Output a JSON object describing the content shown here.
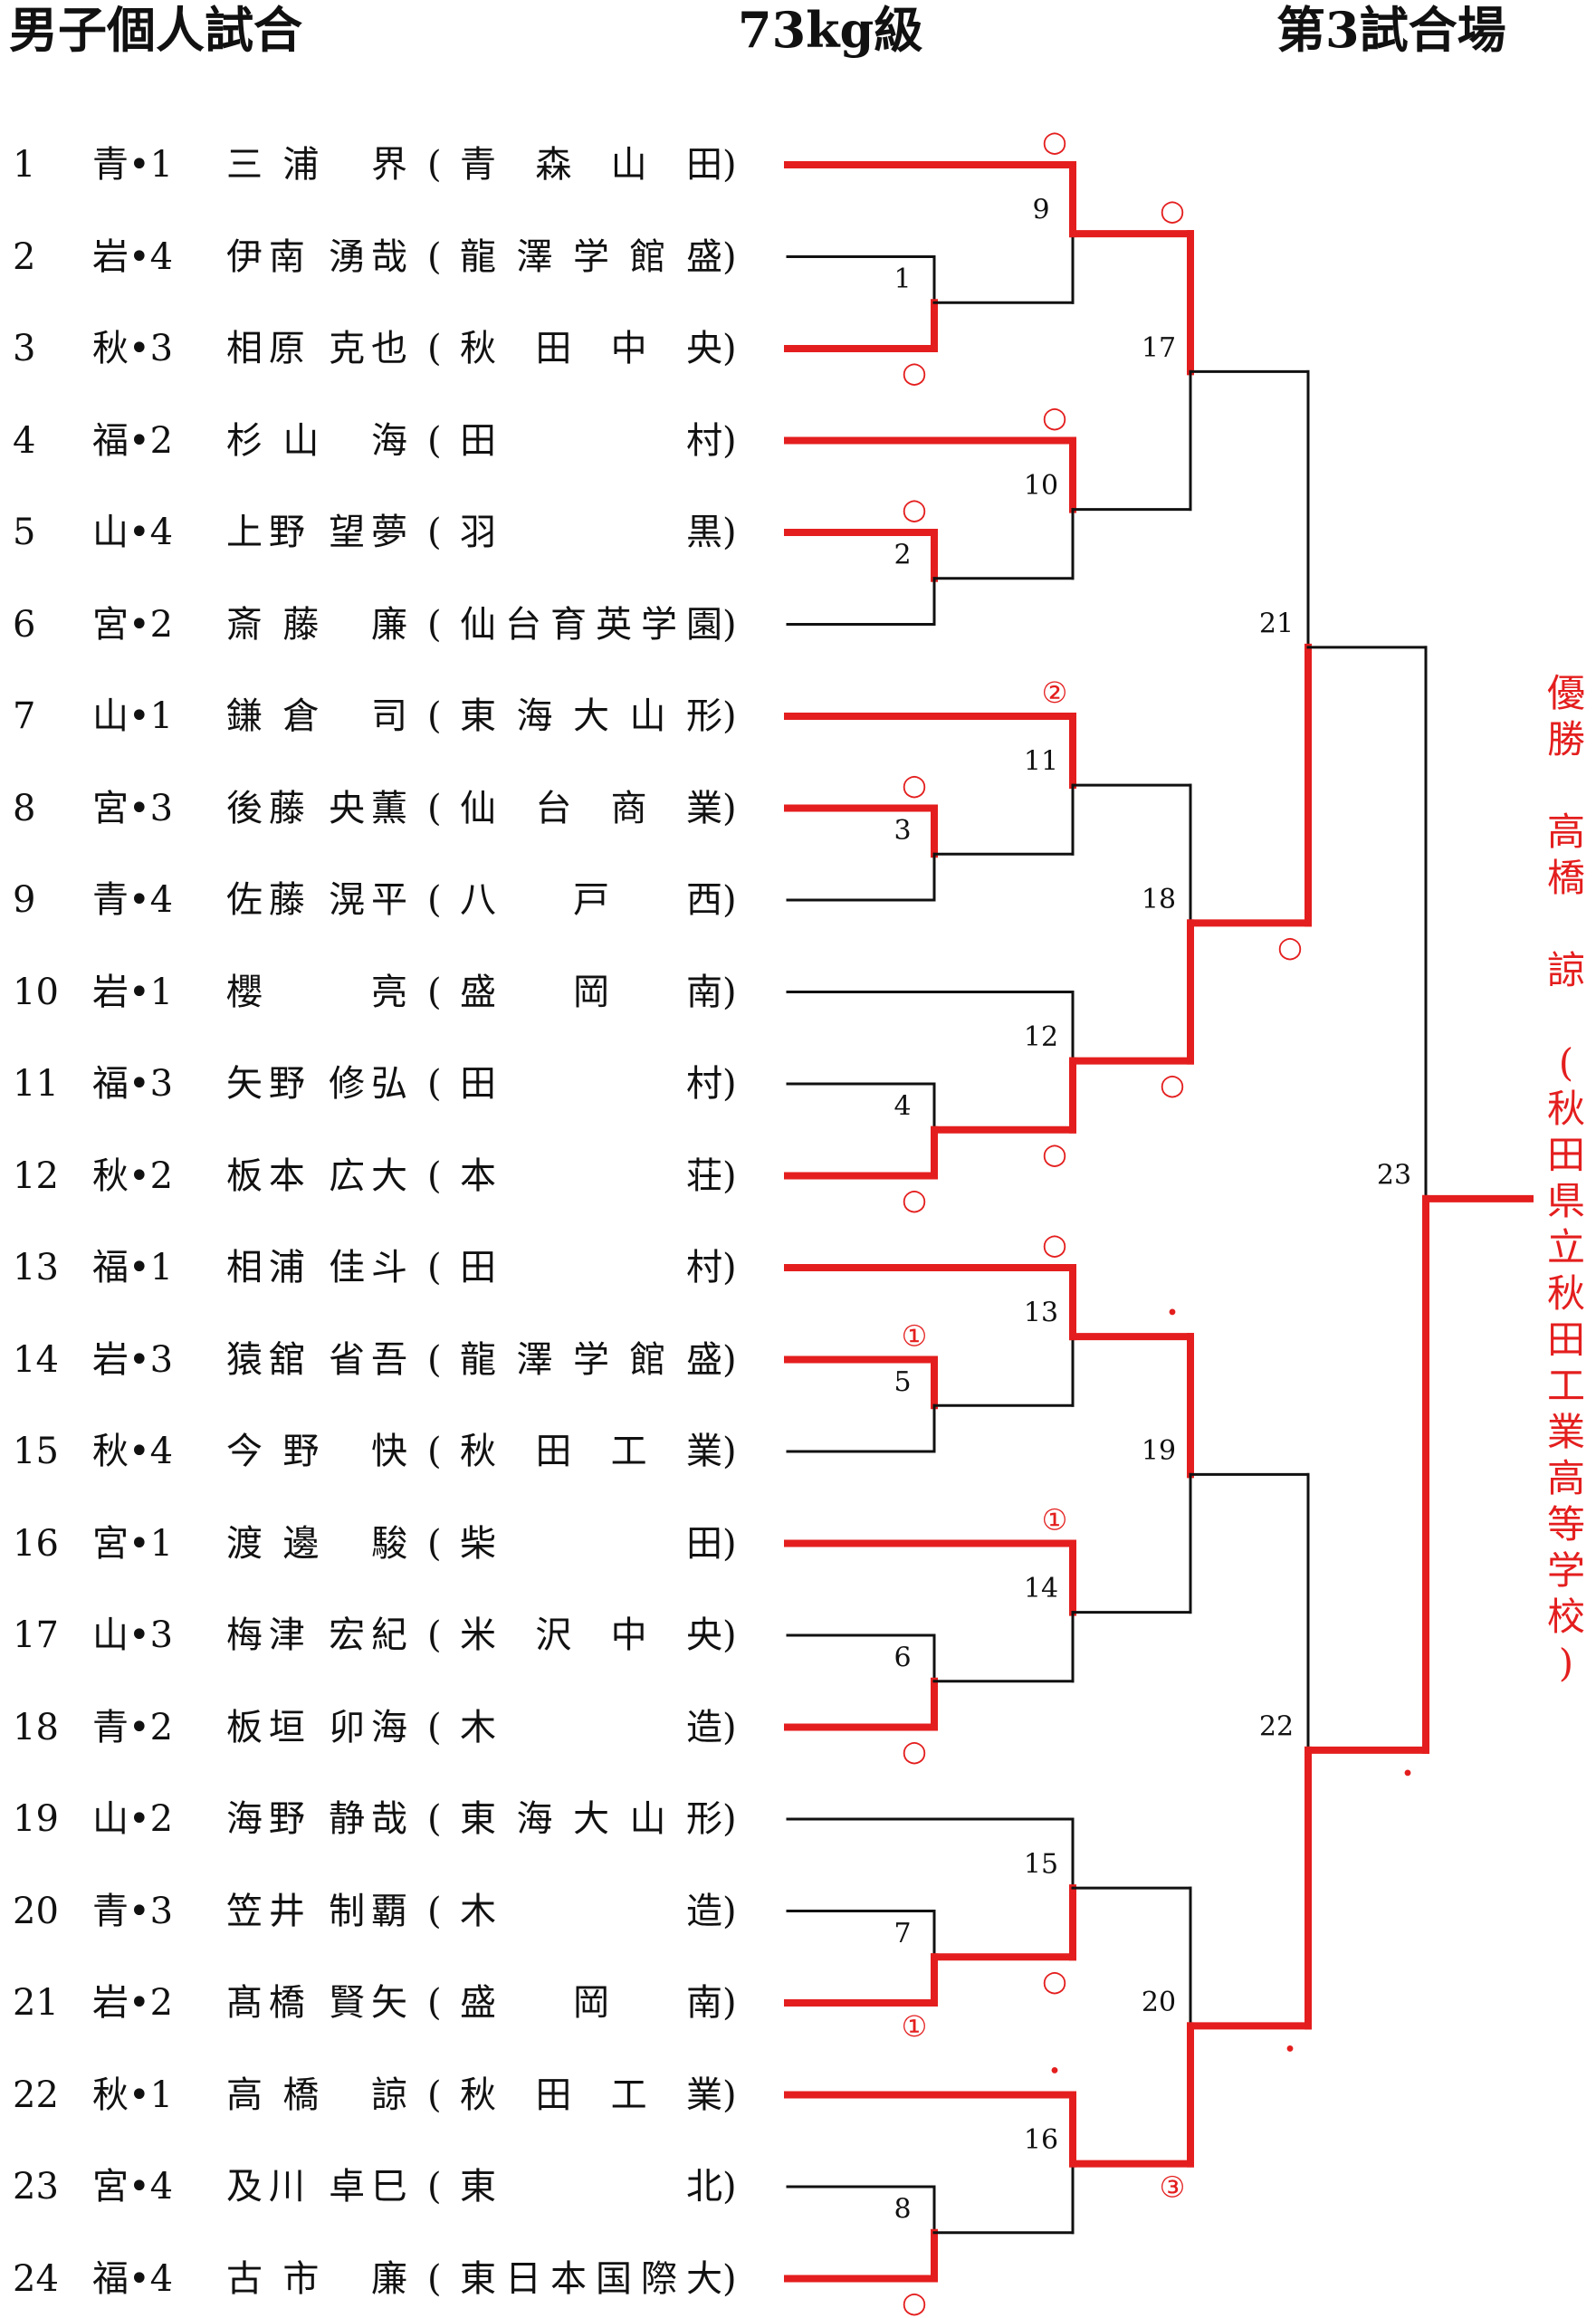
{
  "header": {
    "title": "男子個人試合",
    "weight_class": "73kg級",
    "venue": "第3試合場"
  },
  "players": [
    {
      "no": "1",
      "pref": "青•1",
      "name": "三浦 界",
      "school": "青森山田"
    },
    {
      "no": "2",
      "pref": "岩•4",
      "name": "伊南 湧哉",
      "school": "龍澤学館盛"
    },
    {
      "no": "3",
      "pref": "秋•3",
      "name": "相原 克也",
      "school": "秋田中央"
    },
    {
      "no": "4",
      "pref": "福•2",
      "name": "杉山 海",
      "school": "田村"
    },
    {
      "no": "5",
      "pref": "山•4",
      "name": "上野 望夢",
      "school": "羽黒"
    },
    {
      "no": "6",
      "pref": "宮•2",
      "name": "斎藤 廉",
      "school": "仙台育英学園"
    },
    {
      "no": "7",
      "pref": "山•1",
      "name": "鎌倉 司",
      "school": "東海大山形"
    },
    {
      "no": "8",
      "pref": "宮•3",
      "name": "後藤 央薫",
      "school": "仙台商業"
    },
    {
      "no": "9",
      "pref": "青•4",
      "name": "佐藤 滉平",
      "school": "八戸西"
    },
    {
      "no": "10",
      "pref": "岩•1",
      "name": "櫻 亮",
      "school": "盛岡南"
    },
    {
      "no": "11",
      "pref": "福•3",
      "name": "矢野 修弘",
      "school": "田村"
    },
    {
      "no": "12",
      "pref": "秋•2",
      "name": "板本 広大",
      "school": "本荘"
    },
    {
      "no": "13",
      "pref": "福•1",
      "name": "相浦 佳斗",
      "school": "田村"
    },
    {
      "no": "14",
      "pref": "岩•3",
      "name": "猿舘 省吾",
      "school": "龍澤学館盛"
    },
    {
      "no": "15",
      "pref": "秋•4",
      "name": "今野 快",
      "school": "秋田工業"
    },
    {
      "no": "16",
      "pref": "宮•1",
      "name": "渡邊 駿",
      "school": "柴田"
    },
    {
      "no": "17",
      "pref": "山•3",
      "name": "梅津 宏紀",
      "school": "米沢中央"
    },
    {
      "no": "18",
      "pref": "青•2",
      "name": "板垣 卯海",
      "school": "木造"
    },
    {
      "no": "19",
      "pref": "山•2",
      "name": "海野 静哉",
      "school": "東海大山形"
    },
    {
      "no": "20",
      "pref": "青•3",
      "name": "笠井 制覇",
      "school": "木造"
    },
    {
      "no": "21",
      "pref": "岩•2",
      "name": "髙橋 賢矢",
      "school": "盛岡南"
    },
    {
      "no": "22",
      "pref": "秋•1",
      "name": "高橋 諒",
      "school": "秋田工業"
    },
    {
      "no": "23",
      "pref": "宮•4",
      "name": "及川 卓巳",
      "school": "東北"
    },
    {
      "no": "24",
      "pref": "福•4",
      "name": "古市 廉",
      "school": "東日本国際大"
    }
  ],
  "bracket": {
    "colors": {
      "winner": "#e41e1e",
      "line": "#111111"
    },
    "matches": [
      {
        "no": "1",
        "players": [
          2,
          3
        ],
        "winner": 3,
        "mark": "○"
      },
      {
        "no": "2",
        "players": [
          5,
          6
        ],
        "winner": 5,
        "mark": "○"
      },
      {
        "no": "3",
        "players": [
          8,
          9
        ],
        "winner": 8,
        "mark": "○"
      },
      {
        "no": "4",
        "players": [
          11,
          12
        ],
        "winner": 12,
        "mark": "○"
      },
      {
        "no": "5",
        "players": [
          14,
          15
        ],
        "winner": 14,
        "mark": "①"
      },
      {
        "no": "6",
        "players": [
          17,
          18
        ],
        "winner": 18,
        "mark": "○"
      },
      {
        "no": "7",
        "players": [
          20,
          21
        ],
        "winner": 21,
        "mark": "①"
      },
      {
        "no": "8",
        "players": [
          23,
          24
        ],
        "winner": 24,
        "mark": "○"
      },
      {
        "no": "9",
        "players": [
          1,
          3
        ],
        "winner": 1,
        "mark": "○"
      },
      {
        "no": "10",
        "players": [
          4,
          5
        ],
        "winner": 4,
        "mark": "○"
      },
      {
        "no": "11",
        "players": [
          7,
          8
        ],
        "winner": 7,
        "mark": "②"
      },
      {
        "no": "12",
        "players": [
          10,
          12
        ],
        "winner": 12,
        "mark": "○"
      },
      {
        "no": "13",
        "players": [
          13,
          14
        ],
        "winner": 13,
        "mark": "○"
      },
      {
        "no": "14",
        "players": [
          16,
          18
        ],
        "winner": 16,
        "mark": "①"
      },
      {
        "no": "15",
        "players": [
          19,
          21
        ],
        "winner": 21,
        "mark": "○"
      },
      {
        "no": "16",
        "players": [
          22,
          24
        ],
        "winner": 22,
        "mark": "・"
      },
      {
        "no": "17",
        "players": [
          1,
          4
        ],
        "winner": 1,
        "mark": "○"
      },
      {
        "no": "18",
        "players": [
          7,
          12
        ],
        "winner": 12,
        "mark": "○"
      },
      {
        "no": "19",
        "players": [
          13,
          16
        ],
        "winner": 13,
        "mark": "・"
      },
      {
        "no": "20",
        "players": [
          21,
          22
        ],
        "winner": 22,
        "mark": "③"
      },
      {
        "no": "21",
        "players": [
          1,
          12
        ],
        "winner": 12,
        "mark": "○"
      },
      {
        "no": "22",
        "players": [
          13,
          22
        ],
        "winner": 22,
        "mark": "・"
      },
      {
        "no": "23",
        "players": [
          12,
          22
        ],
        "winner": 22,
        "mark": "・"
      }
    ]
  },
  "champion": {
    "label": "優勝",
    "name": "高橋 諒",
    "school": "秋田県立秋田工業高等学校"
  }
}
